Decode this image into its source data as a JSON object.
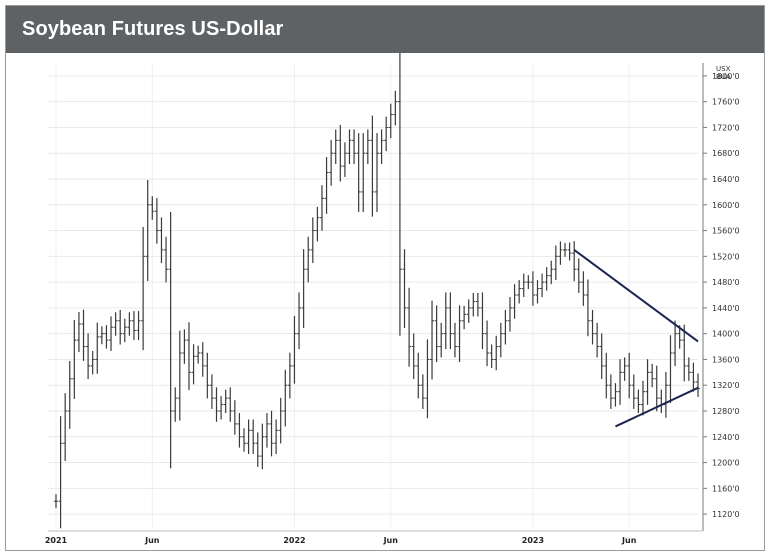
{
  "title": "Soybean Futures US-Dollar",
  "chart_data": {
    "type": "bar",
    "title": "Soybean Futures US-Dollar",
    "unit_label": [
      "USX",
      "BUA"
    ],
    "ylim": [
      1100,
      1820
    ],
    "yticks": [
      {
        "value": 1800,
        "label": "1800'0"
      },
      {
        "value": 1760,
        "label": "1760'0"
      },
      {
        "value": 1720,
        "label": "1720'0"
      },
      {
        "value": 1680,
        "label": "1680'0"
      },
      {
        "value": 1640,
        "label": "1640'0"
      },
      {
        "value": 1600,
        "label": "1600'0"
      },
      {
        "value": 1560,
        "label": "1560'0"
      },
      {
        "value": 1520,
        "label": "1520'0"
      },
      {
        "value": 1480,
        "label": "1480'0"
      },
      {
        "value": 1440,
        "label": "1440'0"
      },
      {
        "value": 1400,
        "label": "1400'0"
      },
      {
        "value": 1360,
        "label": "1360'0"
      },
      {
        "value": 1320,
        "label": "1320'0"
      },
      {
        "value": 1280,
        "label": "1280'0"
      },
      {
        "value": 1240,
        "label": "1240'0"
      },
      {
        "value": 1200,
        "label": "1200'0"
      },
      {
        "value": 1160,
        "label": "1160'0"
      },
      {
        "value": 1120,
        "label": "1120'0"
      }
    ],
    "xticks": [
      {
        "label": "2021",
        "week": 0
      },
      {
        "label": "Jun",
        "week": 21
      },
      {
        "label": "2022",
        "week": 52
      },
      {
        "label": "Jun",
        "week": 73
      },
      {
        "label": "2023",
        "week": 104
      },
      {
        "label": "Jun",
        "week": 125
      }
    ],
    "grid": true,
    "trendlines": [
      {
        "name": "upper",
        "from": {
          "week": 113,
          "value": 1530
        },
        "to": {
          "week": 140,
          "value": 1388
        }
      },
      {
        "name": "lower",
        "from": {
          "week": 122,
          "value": 1256
        },
        "to": {
          "week": 140,
          "value": 1316
        }
      }
    ],
    "weekly_close": [
      1140,
      1230,
      1280,
      1330,
      1390,
      1415,
      1380,
      1350,
      1360,
      1395,
      1400,
      1390,
      1410,
      1420,
      1400,
      1410,
      1420,
      1405,
      1420,
      1520,
      1600,
      1590,
      1560,
      1530,
      1500,
      1280,
      1300,
      1370,
      1390,
      1340,
      1365,
      1370,
      1350,
      1320,
      1300,
      1280,
      1290,
      1300,
      1280,
      1260,
      1240,
      1230,
      1250,
      1230,
      1210,
      1240,
      1260,
      1230,
      1250,
      1280,
      1320,
      1350,
      1400,
      1440,
      1500,
      1530,
      1560,
      1580,
      1610,
      1650,
      1680,
      1700,
      1660,
      1680,
      1700,
      1680,
      1620,
      1680,
      1700,
      1620,
      1680,
      1700,
      1720,
      1740,
      1760,
      1500,
      1440,
      1380,
      1350,
      1320,
      1300,
      1360,
      1420,
      1380,
      1400,
      1440,
      1400,
      1380,
      1420,
      1430,
      1440,
      1450,
      1440,
      1400,
      1370,
      1360,
      1380,
      1400,
      1420,
      1440,
      1460,
      1470,
      1480,
      1480,
      1460,
      1470,
      1480,
      1490,
      1500,
      1520,
      1530,
      1530,
      1525,
      1500,
      1480,
      1460,
      1420,
      1400,
      1380,
      1350,
      1320,
      1300,
      1310,
      1340,
      1350,
      1320,
      1300,
      1290,
      1310,
      1340,
      1330,
      1300,
      1290,
      1320,
      1370,
      1400,
      1390,
      1350,
      1340,
      1325,
      1315
    ]
  }
}
